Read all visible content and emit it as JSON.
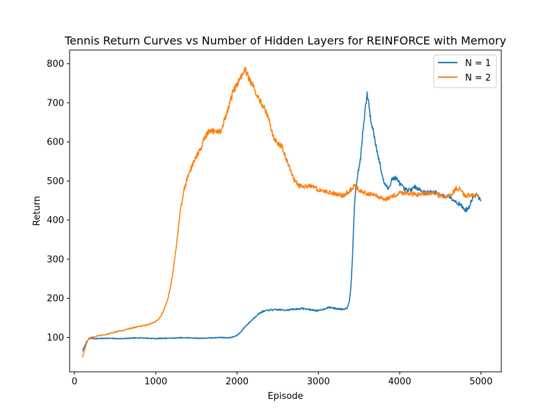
{
  "chart_data": {
    "type": "line",
    "title": "Tennis Return Curves vs Number of Hidden Layers for REINFORCE with Memory",
    "xlabel": "Episode",
    "ylabel": "Return",
    "xlim": [
      -60,
      5250
    ],
    "ylim": [
      12,
      835
    ],
    "xticks": [
      0,
      1000,
      2000,
      3000,
      4000,
      5000
    ],
    "yticks": [
      100,
      200,
      300,
      400,
      500,
      600,
      700,
      800
    ],
    "grid": false,
    "legend": "top-right",
    "series": [
      {
        "name": "N = 1",
        "color": "#1f77b4",
        "x": [
          100,
          120,
          140,
          160,
          180,
          200,
          250,
          300,
          400,
          500,
          600,
          700,
          800,
          900,
          1000,
          1100,
          1200,
          1300,
          1400,
          1500,
          1600,
          1700,
          1800,
          1900,
          1950,
          2000,
          2050,
          2100,
          2150,
          2200,
          2250,
          2300,
          2350,
          2400,
          2500,
          2600,
          2700,
          2800,
          2900,
          3000,
          3100,
          3150,
          3200,
          3250,
          3300,
          3350,
          3380,
          3400,
          3420,
          3440,
          3460,
          3480,
          3500,
          3520,
          3540,
          3560,
          3580,
          3600,
          3620,
          3640,
          3660,
          3680,
          3700,
          3720,
          3740,
          3760,
          3780,
          3800,
          3820,
          3840,
          3860,
          3880,
          3900,
          3950,
          4000,
          4050,
          4100,
          4150,
          4200,
          4250,
          4300,
          4350,
          4400,
          4450,
          4500,
          4550,
          4600,
          4650,
          4700,
          4750,
          4800,
          4850,
          4900,
          4950,
          5000
        ],
        "values": [
          65,
          75,
          85,
          92,
          96,
          98,
          97,
          97,
          98,
          97,
          97,
          98,
          99,
          98,
          97,
          98,
          98,
          99,
          99,
          98,
          98,
          99,
          100,
          99,
          101,
          105,
          115,
          128,
          138,
          148,
          158,
          165,
          168,
          170,
          171,
          170,
          172,
          174,
          171,
          168,
          175,
          177,
          174,
          173,
          172,
          175,
          190,
          230,
          310,
          420,
          480,
          510,
          535,
          560,
          610,
          650,
          690,
          720,
          700,
          660,
          640,
          625,
          600,
          580,
          560,
          540,
          520,
          500,
          492,
          485,
          480,
          490,
          505,
          508,
          495,
          480,
          475,
          480,
          485,
          478,
          470,
          470,
          472,
          470,
          465,
          460,
          462,
          455,
          445,
          440,
          425,
          430,
          460,
          465,
          448
        ]
      },
      {
        "name": "N = 2",
        "color": "#ff7f0e",
        "x": [
          100,
          120,
          140,
          160,
          180,
          200,
          250,
          300,
          400,
          500,
          600,
          700,
          800,
          900,
          1000,
          1050,
          1100,
          1150,
          1200,
          1250,
          1300,
          1350,
          1400,
          1450,
          1500,
          1550,
          1600,
          1650,
          1700,
          1750,
          1800,
          1850,
          1900,
          1950,
          2000,
          2050,
          2100,
          2150,
          2200,
          2250,
          2300,
          2350,
          2400,
          2450,
          2500,
          2550,
          2600,
          2650,
          2700,
          2750,
          2800,
          2900,
          3000,
          3100,
          3200,
          3300,
          3400,
          3450,
          3500,
          3600,
          3700,
          3800,
          3900,
          4000,
          4100,
          4200,
          4300,
          4400,
          4500,
          4600,
          4700,
          4750,
          4800,
          4900,
          4950
        ],
        "values": [
          50,
          65,
          80,
          92,
          98,
          100,
          102,
          104,
          108,
          114,
          118,
          124,
          128,
          132,
          140,
          150,
          170,
          200,
          250,
          330,
          420,
          480,
          515,
          540,
          565,
          580,
          610,
          625,
          628,
          630,
          625,
          660,
          690,
          730,
          745,
          768,
          785,
          760,
          740,
          720,
          700,
          680,
          650,
          610,
          595,
          590,
          560,
          530,
          505,
          490,
          485,
          488,
          478,
          472,
          468,
          462,
          478,
          490,
          475,
          468,
          465,
          452,
          460,
          470,
          470,
          465,
          468,
          470,
          462,
          458,
          482,
          478,
          462,
          465,
          462
        ]
      }
    ]
  }
}
